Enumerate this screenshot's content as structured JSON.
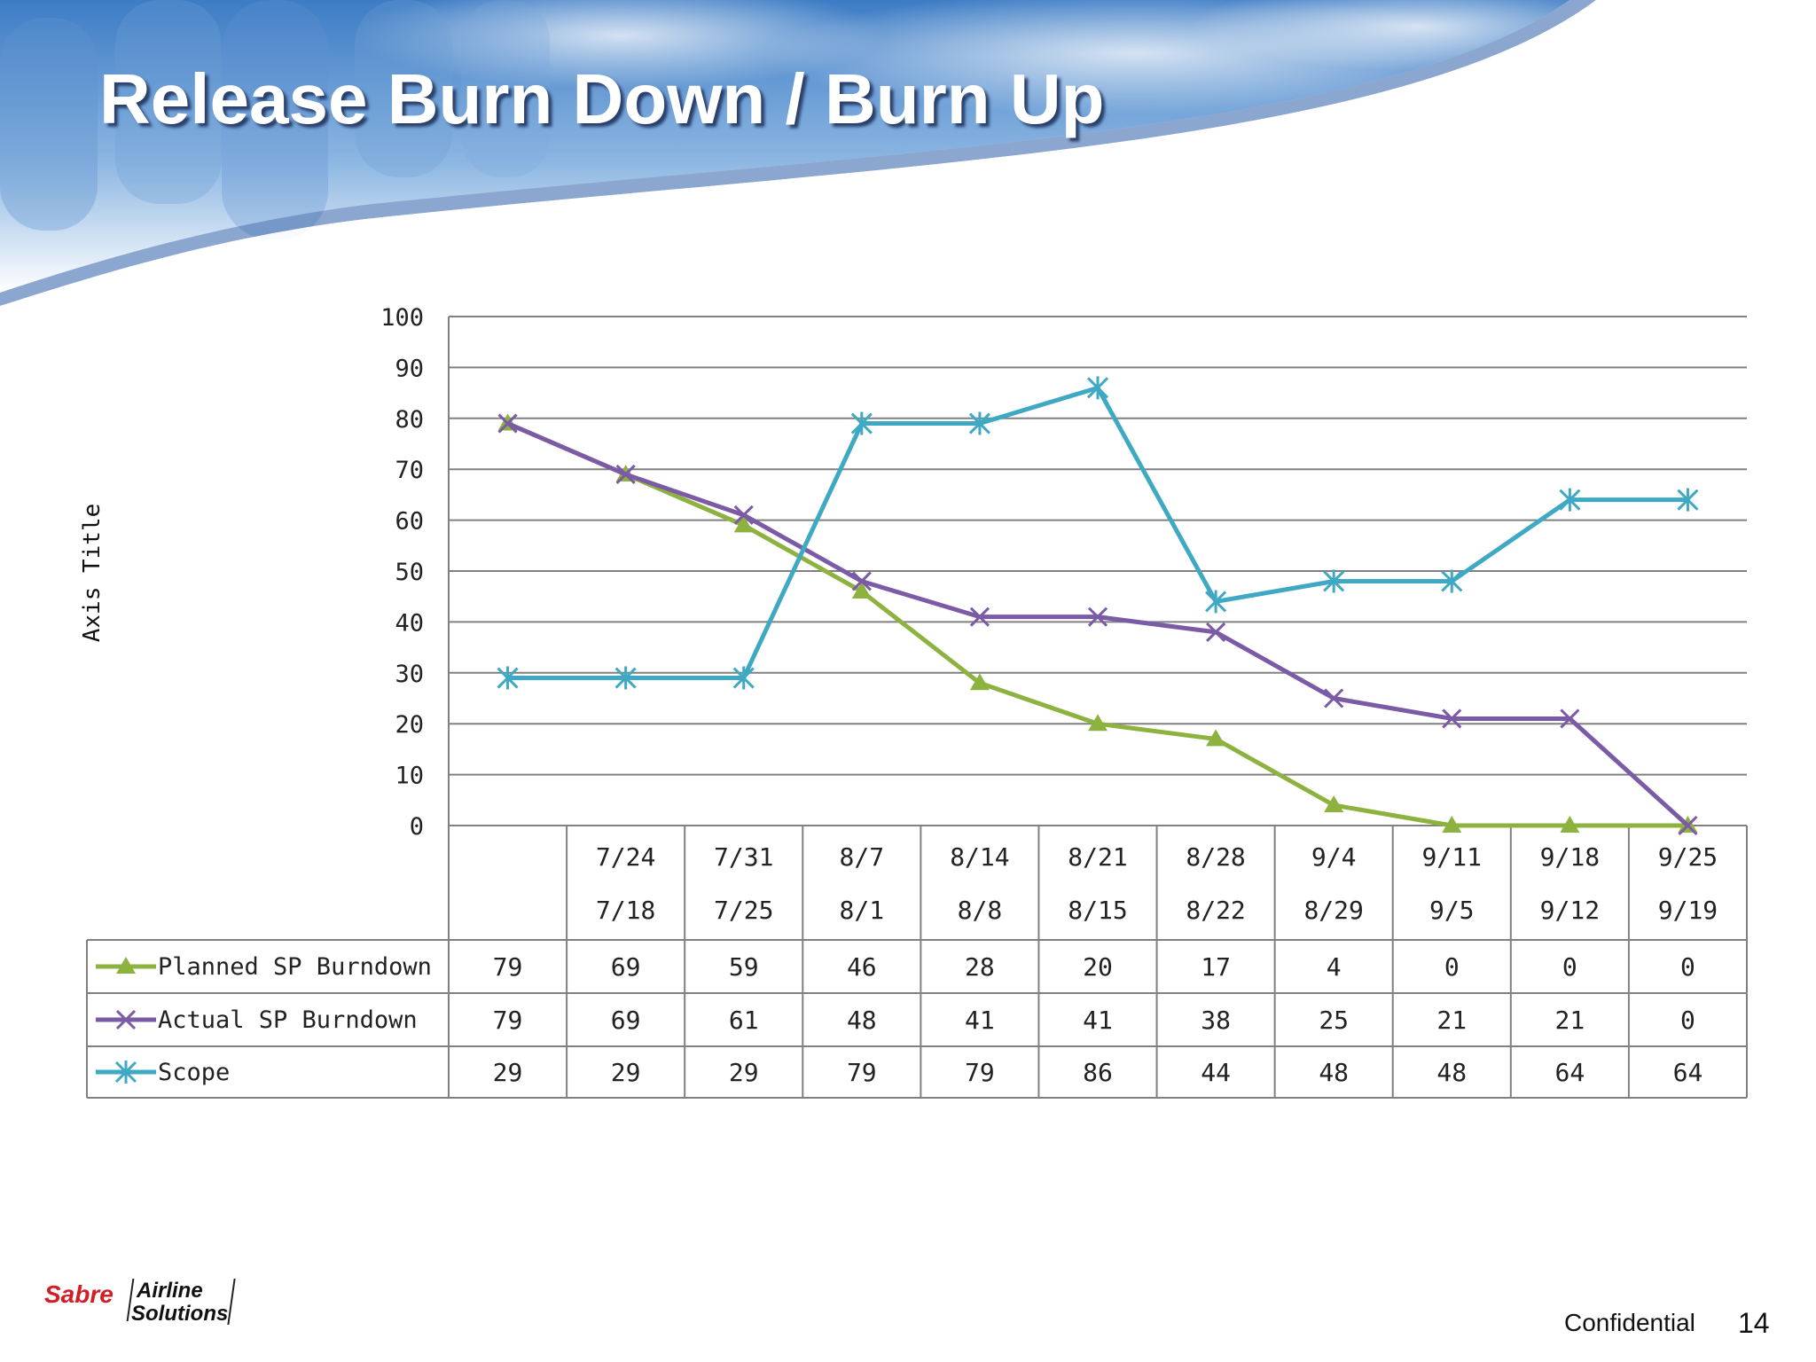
{
  "slide": {
    "title": "Release Burn Down / Burn Up",
    "footer_label": "Confidential",
    "page_number": "14",
    "logo": {
      "brand": "Sabre",
      "line1": "Airline",
      "line2": "Solutions"
    }
  },
  "colors": {
    "planned": "#8db23f",
    "actual": "#7b5aa6",
    "scope": "#3fa9c4",
    "grid": "#808080",
    "sky": "#4f8fd0"
  },
  "chart_data": {
    "type": "line",
    "title": "",
    "xlabel": "",
    "ylabel": "Axis Title",
    "ylim": [
      0,
      100
    ],
    "yticks": [
      0,
      10,
      20,
      30,
      40,
      50,
      60,
      70,
      80,
      90,
      100
    ],
    "categories": [
      {
        "line1": "",
        "line2": ""
      },
      {
        "line1": "7/24",
        "line2": "7/18"
      },
      {
        "line1": "7/31",
        "line2": "7/25"
      },
      {
        "line1": "8/7",
        "line2": "8/1"
      },
      {
        "line1": "8/14",
        "line2": "8/8"
      },
      {
        "line1": "8/21",
        "line2": "8/15"
      },
      {
        "line1": "8/28",
        "line2": "8/22"
      },
      {
        "line1": "9/4",
        "line2": "8/29"
      },
      {
        "line1": "9/11",
        "line2": "9/5"
      },
      {
        "line1": "9/18",
        "line2": "9/12"
      },
      {
        "line1": "9/25",
        "line2": "9/19"
      }
    ],
    "grid": true,
    "legend": "data-table",
    "series": [
      {
        "name": "Planned SP Burndown",
        "marker": "triangle",
        "color": "#8db23f",
        "values": [
          79,
          69,
          59,
          46,
          28,
          20,
          17,
          4,
          0,
          0,
          0
        ]
      },
      {
        "name": "Actual  SP Burndown",
        "marker": "x",
        "color": "#7b5aa6",
        "values": [
          79,
          69,
          61,
          48,
          41,
          41,
          38,
          25,
          21,
          21,
          0
        ]
      },
      {
        "name": "Scope",
        "marker": "star",
        "color": "#3fa9c4",
        "values": [
          29,
          29,
          29,
          79,
          79,
          86,
          44,
          48,
          48,
          64,
          64
        ]
      }
    ]
  }
}
